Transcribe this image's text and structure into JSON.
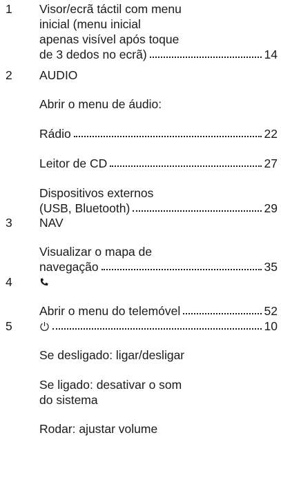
{
  "items": [
    {
      "number": "1",
      "paragraphs": [
        {
          "lines": [
            "Visor/ecrã táctil com menu",
            "inicial (menu inicial",
            "apenas visível após toque",
            "de 3 dedos no ecrã)"
          ],
          "page": 14
        }
      ]
    },
    {
      "number": "2",
      "heading": "AUDIO",
      "paragraphs": [
        {
          "lines": [
            "Abrir o menu de áudio:"
          ]
        },
        {
          "lines": [
            "Rádio"
          ],
          "page": 22
        },
        {
          "lines": [
            "Leitor de CD"
          ],
          "page": 27
        },
        {
          "lines": [
            "Dispositivos externos",
            "(USB, Bluetooth)"
          ],
          "page": 29
        }
      ]
    },
    {
      "number": "3",
      "heading": "NAV",
      "paragraphs": [
        {
          "lines": [
            "Visualizar o mapa de",
            "navegação"
          ],
          "page": 35
        }
      ]
    },
    {
      "number": "4",
      "paragraphs": [
        {
          "lines": [
            "Abrir o menu do telemóvel"
          ],
          "page": 52
        }
      ]
    },
    {
      "number": "5",
      "page": 10,
      "paragraphs": [
        {
          "lines": [
            "Se desligado: ligar/desligar"
          ]
        },
        {
          "lines": [
            "Se ligado: desativar o som",
            "do sistema"
          ]
        },
        {
          "lines": [
            "Rodar: ajustar volume"
          ]
        }
      ]
    }
  ]
}
